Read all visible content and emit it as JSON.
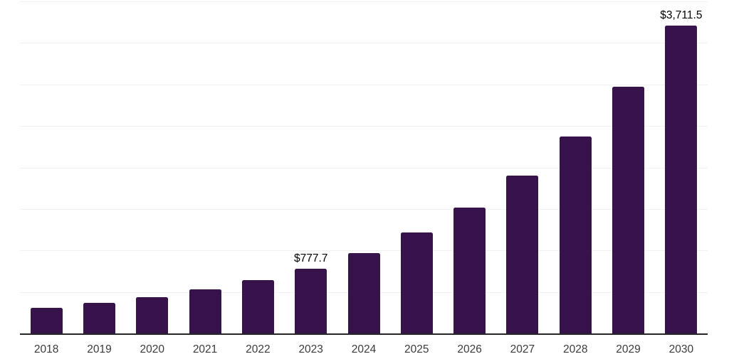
{
  "chart_data": {
    "type": "bar",
    "title": "",
    "xlabel": "",
    "ylabel": "",
    "categories": [
      "2018",
      "2019",
      "2020",
      "2021",
      "2022",
      "2023",
      "2024",
      "2025",
      "2026",
      "2027",
      "2028",
      "2029",
      "2030"
    ],
    "values": [
      310,
      372,
      440,
      528,
      643,
      777.7,
      972,
      1215,
      1520,
      1900,
      2375,
      2969,
      3711.5
    ],
    "data_labels": {
      "2023": "$777.7",
      "2030": "$3,711.5"
    },
    "ylim": [
      0,
      4000
    ],
    "gridline_step": 500,
    "grid": "horizontal-only",
    "legend_position": "none",
    "colors": {
      "bar": "#36134A",
      "value_label": "#000000",
      "axis_label": "#3b3b3b",
      "gridline": "#f1f1f1",
      "axis_line": "#262626",
      "background": "#ffffff"
    }
  }
}
